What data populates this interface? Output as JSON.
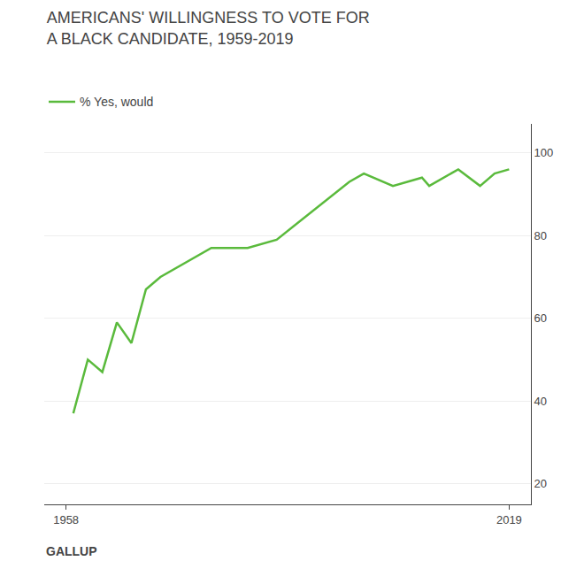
{
  "chart_data": {
    "type": "line",
    "title": "AMERICANS' WILLINGNESS TO VOTE FOR",
    "subtitle": "A BLACK CANDIDATE, 1959-2019",
    "x": [
      1959,
      1961,
      1963,
      1965,
      1967,
      1969,
      1971,
      1978,
      1983,
      1987,
      1997,
      1999,
      2003,
      2007,
      2008,
      2011,
      2012,
      2015,
      2017,
      2019
    ],
    "series": [
      {
        "name": "% Yes, would",
        "color": "#5aba3c",
        "values": [
          37,
          50,
          47,
          59,
          54,
          67,
          70,
          77,
          77,
          79,
          93,
          95,
          92,
          94,
          92,
          95,
          96,
          92,
          95,
          96
        ]
      }
    ],
    "xlim": [
      1955,
      2022
    ],
    "xticks": [
      1958,
      2019
    ],
    "ylim": [
      15,
      107
    ],
    "yticks": [
      20,
      40,
      60,
      80,
      100
    ],
    "grid": true,
    "legend": "upper left",
    "annotations": [
      "GALLUP"
    ]
  }
}
